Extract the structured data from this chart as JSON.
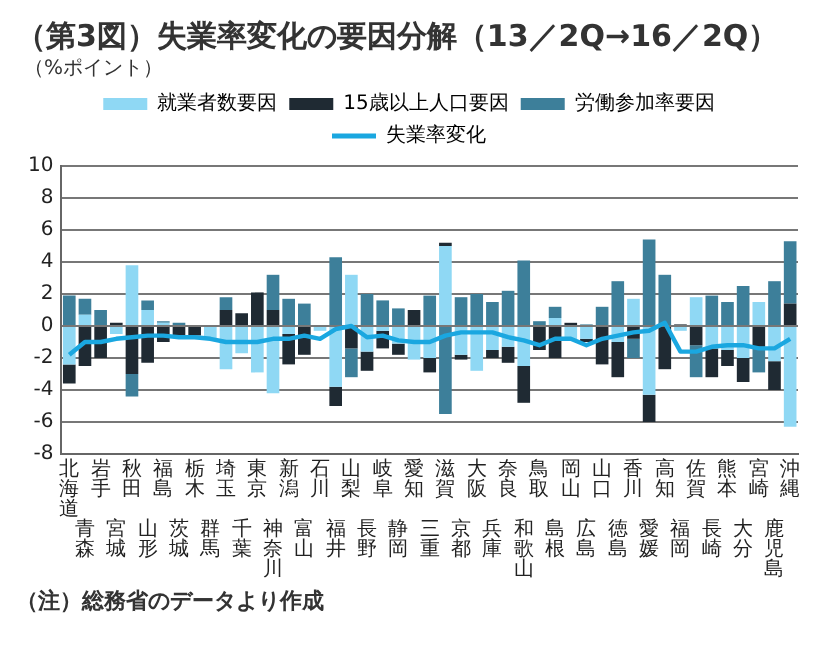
{
  "chart_data": {
    "type": "bar",
    "title": "（第3図）失業率変化の要因分解（13／2Q→16／2Q）",
    "ylabel": "（%ポイント）",
    "annotations": [
      "（注）総務省のデータより作成"
    ],
    "categories": [
      "北海道",
      "青森",
      "岩手",
      "宮城",
      "秋田",
      "山形",
      "福島",
      "茨城",
      "栃木",
      "群馬",
      "埼玉",
      "千葉",
      "東京",
      "神奈川",
      "新潟",
      "富山",
      "石川",
      "福井",
      "山梨",
      "長野",
      "岐阜",
      "静岡",
      "愛知",
      "三重",
      "滋賀",
      "京都",
      "大阪",
      "兵庫",
      "奈良",
      "和歌山",
      "鳥取",
      "島根",
      "岡山",
      "広島",
      "山口",
      "徳島",
      "香川",
      "愛媛",
      "高知",
      "福岡",
      "佐賀",
      "長崎",
      "熊本",
      "大分",
      "宮崎",
      "鹿児島",
      "沖縄"
    ],
    "stacked": true,
    "ylim": [
      -8,
      10
    ],
    "yticks": [
      -8,
      -6,
      -4,
      -2,
      0,
      2,
      4,
      6,
      8,
      10
    ],
    "grid": "y",
    "legend": "top",
    "series": [
      {
        "name": "就業者数要因",
        "color": "#8fd8f4",
        "values": [
          -2.4,
          0.7,
          0,
          -0.5,
          3.8,
          1.0,
          0.2,
          0,
          0,
          -0.8,
          -2.7,
          -1.7,
          -2.9,
          -4.2,
          -0.5,
          0,
          -0.3,
          -3.8,
          3.2,
          -1.6,
          -0.3,
          -1.1,
          -2.1,
          -2.0,
          5.0,
          -1.8,
          -2.8,
          -1.5,
          -1.3,
          -2.5,
          0,
          0.5,
          -0.9,
          -0.8,
          0,
          -1.0,
          1.7,
          -4.3,
          0,
          -0.3,
          1.8,
          -1.4,
          -1.5,
          -2.0,
          1.5,
          -2.2,
          -6.3
        ]
      },
      {
        "name": "15歳以上人口要因",
        "color": "#1f2a33",
        "values": [
          -1.2,
          -2.5,
          -2.0,
          0.2,
          -3.0,
          -2.3,
          -1.0,
          -0.6,
          -0.6,
          0,
          1.0,
          0.8,
          2.1,
          1.0,
          -1.9,
          -1.8,
          0,
          -1.2,
          -1.4,
          -1.2,
          -1.1,
          -0.7,
          1.0,
          -0.9,
          0.2,
          -0.3,
          0,
          -0.5,
          -1.0,
          -2.3,
          -1.5,
          -2.0,
          0.2,
          -0.2,
          -2.4,
          -2.2,
          -0.8,
          -1.7,
          -2.7,
          0.1,
          -1.2,
          -1.8,
          -1.0,
          -1.5,
          -1.3,
          -1.8,
          1.4
        ]
      },
      {
        "name": "労働参加率要因",
        "color": "#3d7f9a",
        "values": [
          1.9,
          1.0,
          1.0,
          0,
          -1.4,
          0.6,
          0.1,
          0.2,
          0,
          0,
          0.8,
          0,
          0,
          2.2,
          1.7,
          1.4,
          0,
          4.3,
          -1.8,
          2.0,
          1.6,
          1.1,
          0,
          1.9,
          -5.5,
          1.8,
          2.0,
          1.5,
          2.2,
          4.1,
          0.3,
          0.7,
          0,
          0.1,
          1.2,
          2.8,
          -1.2,
          5.4,
          3.2,
          0,
          -2.0,
          1.9,
          1.5,
          2.5,
          -1.6,
          2.8,
          3.9
        ]
      },
      {
        "name": "失業率変化",
        "type": "line",
        "color": "#1aa7e0",
        "marker": "none",
        "values": [
          -1.8,
          -1.0,
          -1.0,
          -0.8,
          -0.7,
          -0.6,
          -0.6,
          -0.7,
          -0.7,
          -0.8,
          -1.0,
          -1.0,
          -1.0,
          -0.8,
          -0.8,
          -0.6,
          -0.8,
          -0.2,
          0.0,
          -0.7,
          -0.6,
          -0.9,
          -1.0,
          -1.0,
          -0.6,
          -0.4,
          -0.4,
          -0.4,
          -0.7,
          -0.9,
          -1.2,
          -0.8,
          -0.8,
          -1.2,
          -0.8,
          -0.6,
          -0.4,
          -0.3,
          0.2,
          -1.6,
          -1.6,
          -1.3,
          -1.2,
          -1.2,
          -1.4,
          -1.4,
          -0.8
        ]
      }
    ]
  }
}
